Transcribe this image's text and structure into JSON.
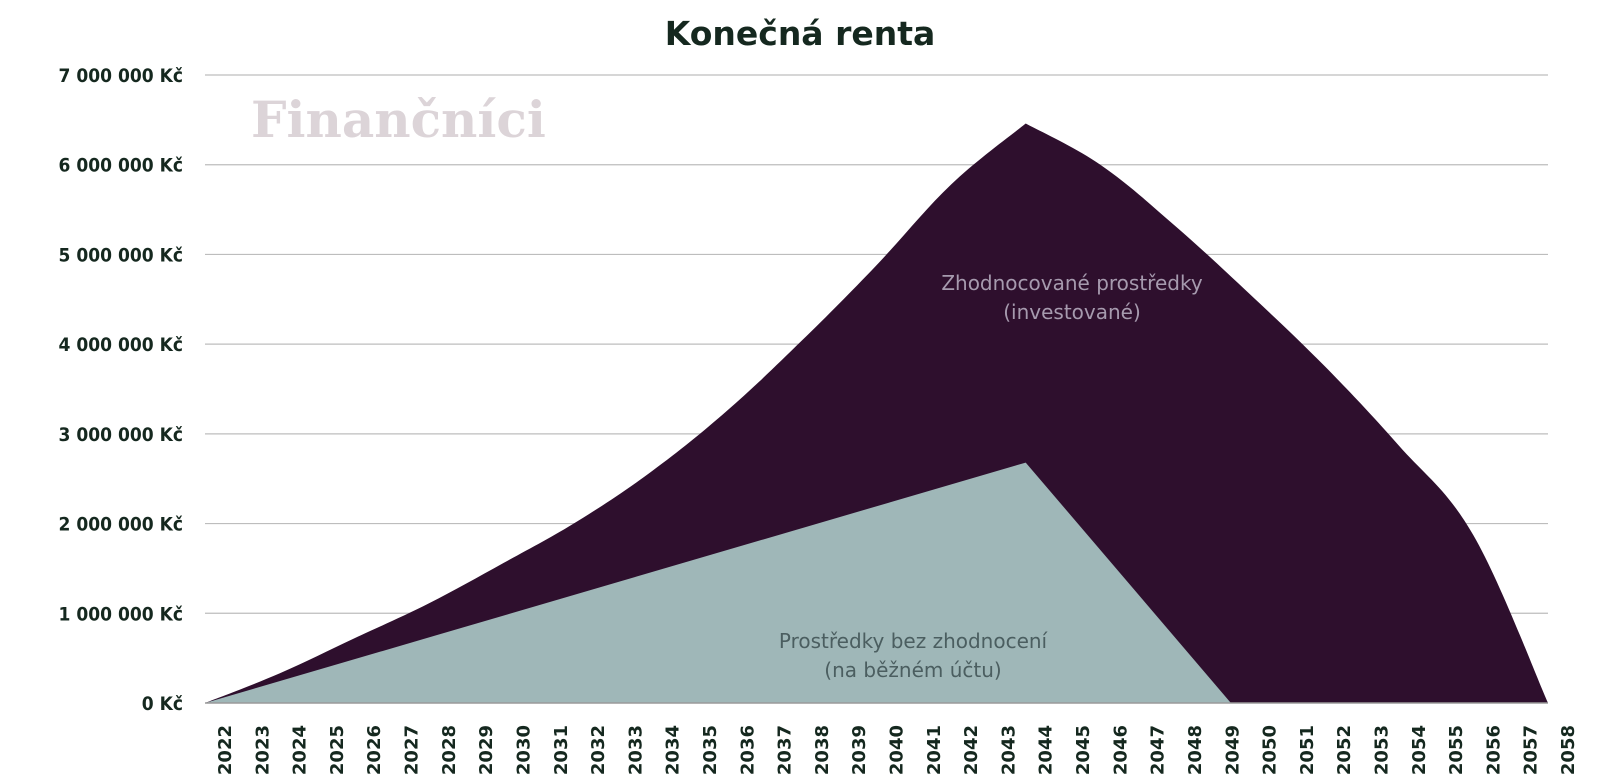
{
  "chart_data": {
    "type": "area",
    "title": "Konečná renta",
    "watermark": "Finančníci",
    "x": [
      "2022",
      "2023",
      "2024",
      "2025",
      "2026",
      "2027",
      "2028",
      "2029",
      "2030",
      "2031",
      "2032",
      "2033",
      "2034",
      "2035",
      "2036",
      "2037",
      "2038",
      "2039",
      "2040",
      "2041",
      "2042",
      "2043",
      "2044",
      "2045",
      "2046",
      "2047",
      "2048",
      "2049",
      "2050",
      "2051",
      "2052",
      "2053",
      "2054",
      "2055",
      "2056",
      "2057",
      "2058"
    ],
    "ylim": [
      0,
      7000000
    ],
    "yticks": [
      {
        "value": 0,
        "label": "0 Kč"
      },
      {
        "value": 1000000,
        "label": "1 000 000 Kč"
      },
      {
        "value": 2000000,
        "label": "2 000 000 Kč"
      },
      {
        "value": 3000000,
        "label": "3 000 000 Kč"
      },
      {
        "value": 4000000,
        "label": "4 000 000 Kč"
      },
      {
        "value": 5000000,
        "label": "5 000 000 Kč"
      },
      {
        "value": 6000000,
        "label": "6 000 000 Kč"
      },
      {
        "value": 7000000,
        "label": "7 000 000 Kč"
      }
    ],
    "grid": true,
    "series": [
      {
        "label_line1": "Zhodnocované prostředky",
        "label_line2": "(investované)",
        "color": "#2e0f2d",
        "label_color": "#a69aae",
        "points": [
          [
            2022,
            0
          ],
          [
            2024,
            330000
          ],
          [
            2026,
            720000
          ],
          [
            2028,
            1110000
          ],
          [
            2030,
            1560000
          ],
          [
            2032,
            2030000
          ],
          [
            2034,
            2590000
          ],
          [
            2036,
            3260000
          ],
          [
            2038,
            4040000
          ],
          [
            2040,
            4880000
          ],
          [
            2042,
            5780000
          ],
          [
            2044,
            6460000
          ],
          [
            2046,
            6000000
          ],
          [
            2048,
            5320000
          ],
          [
            2050,
            4560000
          ],
          [
            2052,
            3760000
          ],
          [
            2054,
            2870000
          ],
          [
            2056,
            1870000
          ],
          [
            2058,
            0
          ]
        ]
      },
      {
        "label_line1": "Prostředky bez zhodnocení",
        "label_line2": "(na běžném účtu)",
        "color": "#9fb7b8",
        "label_color": "#4b5e60",
        "points": [
          [
            2022,
            0
          ],
          [
            2044,
            2680000
          ],
          [
            2049.5,
            0
          ]
        ]
      }
    ]
  }
}
